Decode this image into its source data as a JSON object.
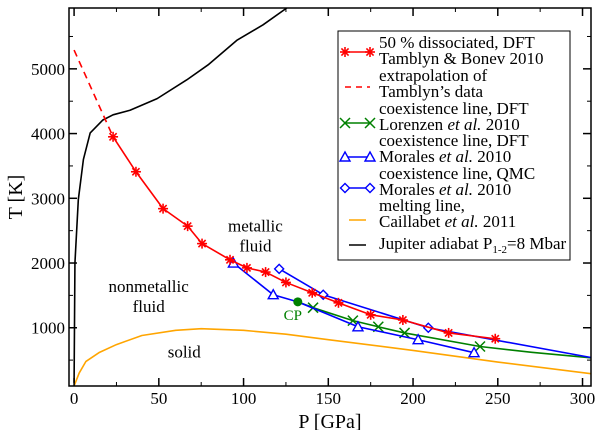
{
  "chart_data": {
    "type": "line",
    "xlabel": "P [GPa]",
    "ylabel": "T [K]",
    "xlim": [
      -3,
      305
    ],
    "ylim": [
      100,
      5940
    ],
    "xticks": [
      0,
      50,
      100,
      150,
      200,
      250,
      300
    ],
    "yticks": [
      1000,
      2000,
      3000,
      4000,
      5000
    ],
    "grid": false,
    "legend_position": "top-right",
    "series": [
      {
        "name": "50 % dissociated, DFT Tamblyn & Bonev 2010",
        "color": "#ff0000",
        "marker": "star",
        "line": "solid",
        "x": [
          23,
          36.5,
          52.5,
          67,
          75.5,
          92,
          102,
          113,
          125,
          140.5,
          156,
          175,
          194,
          221,
          248.5
        ],
        "y": [
          3950,
          3410,
          2840,
          2570,
          2300,
          2050,
          1925,
          1860,
          1700,
          1540,
          1385,
          1200,
          1120,
          920,
          830
        ]
      },
      {
        "name": "extrapolation of Tamblyn's data",
        "color": "#ff0000",
        "marker": "none",
        "line": "dashed",
        "x": [
          0,
          23
        ],
        "y": [
          5290,
          3950
        ]
      },
      {
        "name": "coexistence line, DFT Lorenzen et al. 2010",
        "color": "#008000",
        "marker": "x",
        "line": "solid",
        "x": [
          132,
          141,
          164.5,
          179.5,
          195,
          239.5,
          270,
          305
        ],
        "y": [
          1400,
          1310,
          1110,
          1015,
          920,
          710,
          620,
          535
        ],
        "marker_x": [
          141,
          164.5,
          179.5,
          195,
          239.5
        ],
        "marker_y": [
          1310,
          1110,
          1015,
          920,
          710
        ]
      },
      {
        "name": "coexistence line, DFT Morales et al. 2010",
        "color": "#0000ff",
        "marker": "triangle",
        "line": "solid",
        "x": [
          94,
          117.5,
          132,
          167.5,
          203,
          236
        ],
        "y": [
          2000,
          1510,
          1400,
          1015,
          815,
          615
        ],
        "marker_x": [
          94,
          117.5,
          167.5,
          203,
          236
        ],
        "marker_y": [
          2000,
          1510,
          1015,
          815,
          615
        ]
      },
      {
        "name": "coexistence line, QMC Morales et al. 2010",
        "color": "#0000ff",
        "marker": "diamond",
        "line": "solid",
        "x": [
          121,
          147,
          209,
          305
        ],
        "y": [
          1910,
          1510,
          1000,
          540
        ],
        "marker_x": [
          121,
          147,
          209
        ],
        "marker_y": [
          1910,
          1510,
          1000
        ]
      },
      {
        "name": "melting line, Caillabet et al. 2011",
        "color": "#ffa500",
        "marker": "none",
        "line": "solid",
        "x": [
          0,
          3,
          7,
          15,
          25,
          40,
          60,
          75,
          100,
          125,
          150,
          200,
          250,
          305
        ],
        "y": [
          100,
          300,
          480,
          620,
          740,
          880,
          960,
          985,
          960,
          900,
          815,
          650,
          470,
          290
        ]
      },
      {
        "name": "Jupiter adiabat P1-2=8 Mbar",
        "color": "#000000",
        "marker": "none",
        "line": "solid",
        "x": [
          0,
          0.5,
          2.5,
          5.5,
          9.5,
          17,
          23,
          33,
          49,
          66.5,
          79,
          96,
          111.5,
          125.5
        ],
        "y": [
          150,
          2000,
          2980,
          3600,
          4010,
          4210,
          4290,
          4360,
          4540,
          4830,
          5060,
          5440,
          5680,
          5940
        ]
      }
    ],
    "critical_point": {
      "label": "CP",
      "x": 132,
      "y": 1400,
      "color": "#008000"
    },
    "annotations": [
      {
        "lines": [
          "metallic",
          "fluid"
        ],
        "x": 107,
        "y": 2490
      },
      {
        "lines": [
          "nonmetallic",
          "fluid"
        ],
        "x": 44,
        "y": 1550
      },
      {
        "lines": [
          "solid"
        ],
        "x": 65,
        "y": 540
      }
    ],
    "legend": [
      {
        "line1": "50 % dissociated, DFT",
        "line2a": "Tamblyn & Bonev 2010",
        "line2i": "",
        "line2b": ""
      },
      {
        "line1": "extrapolation of",
        "line2a": "Tamblyn’s data",
        "line2i": "",
        "line2b": ""
      },
      {
        "line1": "coexistence line, DFT",
        "line2a": "Lorenzen ",
        "line2i": "et al.",
        "line2b": " 2010"
      },
      {
        "line1": "coexistence line, DFT",
        "line2a": "Morales ",
        "line2i": "et al.",
        "line2b": " 2010"
      },
      {
        "line1": "coexistence line, QMC",
        "line2a": "Morales ",
        "line2i": "et al.",
        "line2b": " 2010"
      },
      {
        "line1": "melting line,",
        "line2a": "Caillabet ",
        "line2i": "et al.",
        "line2b": " 2011"
      },
      {
        "line1a": "Jupiter adiabat P",
        "line1sub": "1-2",
        "line1b": "=8 Mbar"
      }
    ]
  }
}
